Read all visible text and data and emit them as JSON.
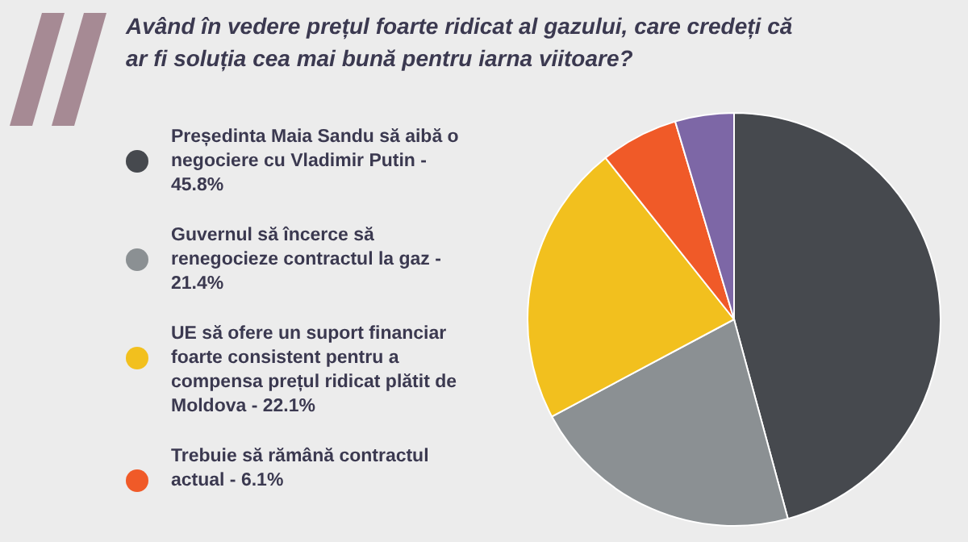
{
  "chart_data": {
    "type": "pie",
    "title": "Având în vedere prețul foarte ridicat al gazului, care credeți că ar fi soluția cea mai bună pentru iarna viitoare?",
    "categories": [
      "Președinta Maia Sandu să aibă o negociere cu Vladimir Putin -",
      "Guvernul să încerce să renegocieze contractul la gaz -",
      "UE să ofere un suport financiar foarte consistent pentru a compensa prețul ridicat plătit de Moldova -",
      "Trebuie să rămână contractul actual -",
      null
    ],
    "values": [
      45.8,
      21.4,
      22.1,
      6.1,
      4.6
    ],
    "value_labels": [
      "45.8%",
      "21.4%",
      "22.1%",
      "6.1%",
      null
    ],
    "colors": [
      "#46494e",
      "#8b9093",
      "#f2c01e",
      "#f05a28",
      "#7d67a6"
    ],
    "legend": "left"
  }
}
